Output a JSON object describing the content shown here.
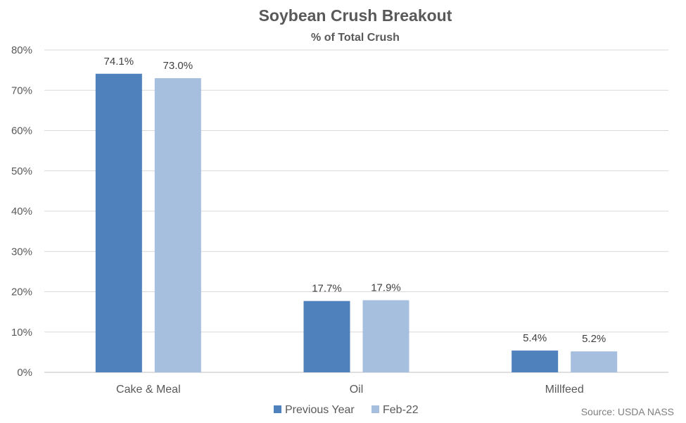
{
  "chart_data": {
    "type": "bar",
    "title": "Soybean Crush Breakout",
    "subtitle": "% of Total Crush",
    "categories": [
      "Cake & Meal",
      "Oil",
      "Millfeed"
    ],
    "series": [
      {
        "name": "Previous Year",
        "values": [
          74.1,
          17.7,
          5.4
        ],
        "labels": [
          "74.1%",
          "17.7%",
          "5.4%"
        ],
        "color": "#4f81bd"
      },
      {
        "name": "Feb-22",
        "values": [
          73.0,
          17.9,
          5.2
        ],
        "labels": [
          "73.0%",
          "17.9%",
          "5.2%"
        ],
        "color": "#a7bfde"
      }
    ],
    "ylim": [
      0,
      80
    ],
    "yticks": [
      0,
      10,
      20,
      30,
      40,
      50,
      60,
      70,
      80
    ],
    "ytick_labels": [
      "0%",
      "10%",
      "20%",
      "30%",
      "40%",
      "50%",
      "60%",
      "70%",
      "80%"
    ],
    "grid": true,
    "legend_position": "bottom",
    "source": "Source: USDA NASS"
  }
}
